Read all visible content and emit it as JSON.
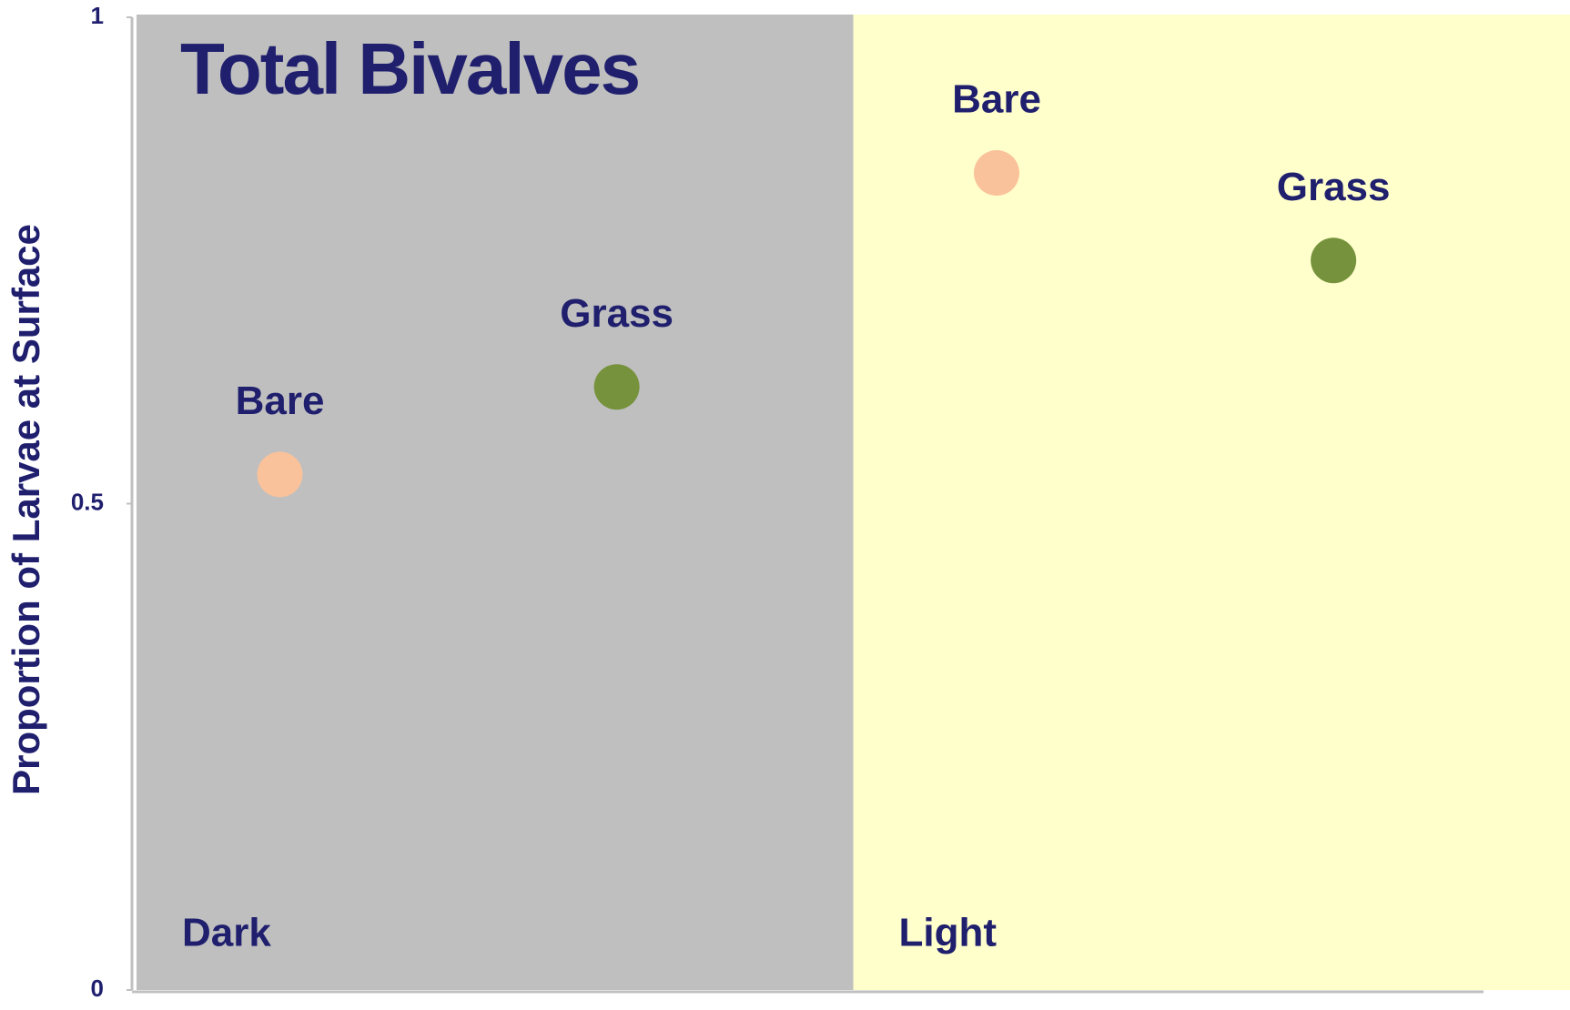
{
  "chart_data": {
    "type": "scatter",
    "title": "Total Bivalves",
    "y_label": "Proportion of Larvae at Surface",
    "categories": [
      "Dark",
      "Light"
    ],
    "category_colors": [
      "#bfbfbf",
      "#ffffcc"
    ],
    "series": [
      {
        "name": "Bare",
        "color": "#f9c29a",
        "values": [
          0.53,
          0.84
        ]
      },
      {
        "name": "Grass",
        "color": "#76923c",
        "values": [
          0.62,
          0.75
        ]
      }
    ],
    "ylim": [
      0,
      1
    ],
    "yticks": [
      0,
      0.5,
      1
    ]
  }
}
